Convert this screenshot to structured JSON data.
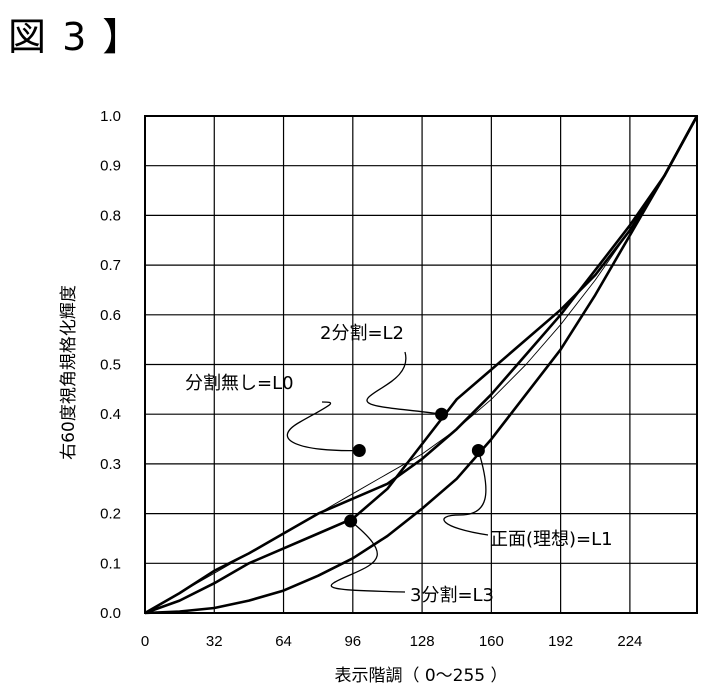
{
  "figure": {
    "title": "図 3 】"
  },
  "chart_data": {
    "type": "line",
    "xlabel": "表示階調（ 0～255 ）",
    "ylabel": "右60度視角規格化輝度",
    "xlim": [
      0,
      255
    ],
    "ylim": [
      0,
      1.0
    ],
    "x_ticks": [
      "0",
      "32",
      "64",
      "96",
      "128",
      "160",
      "192",
      "224"
    ],
    "y_ticks": [
      "0.0",
      "0.1",
      "0.2",
      "0.3",
      "0.4",
      "0.5",
      "0.6",
      "0.7",
      "0.8",
      "0.9",
      "1.0"
    ],
    "grid": true,
    "series": [
      {
        "name": "分割無し=L0",
        "x": [
          0,
          16,
          32,
          48,
          64,
          80,
          96,
          112,
          128,
          144,
          160,
          176,
          192,
          208,
          224,
          240,
          255
        ],
        "y": [
          0,
          0.04,
          0.08,
          0.12,
          0.16,
          0.2,
          0.24,
          0.28,
          0.32,
          0.37,
          0.43,
          0.5,
          0.58,
          0.67,
          0.77,
          0.88,
          1.0
        ]
      },
      {
        "name": "正面(理想)=L1",
        "x": [
          0,
          16,
          32,
          48,
          64,
          80,
          96,
          112,
          128,
          144,
          160,
          176,
          192,
          208,
          224,
          240,
          255
        ],
        "y": [
          0,
          0.003,
          0.01,
          0.025,
          0.045,
          0.075,
          0.11,
          0.155,
          0.21,
          0.27,
          0.35,
          0.44,
          0.53,
          0.64,
          0.76,
          0.88,
          1.0
        ]
      },
      {
        "name": "2分割=L2",
        "x": [
          0,
          16,
          32,
          48,
          64,
          80,
          96,
          112,
          128,
          144,
          160,
          176,
          192,
          208,
          224,
          240,
          255
        ],
        "y": [
          0,
          0.025,
          0.06,
          0.1,
          0.13,
          0.16,
          0.19,
          0.25,
          0.34,
          0.43,
          0.49,
          0.55,
          0.61,
          0.68,
          0.77,
          0.88,
          1.0
        ]
      },
      {
        "name": "3分割=L3",
        "x": [
          0,
          16,
          32,
          48,
          64,
          80,
          96,
          112,
          128,
          144,
          160,
          176,
          192,
          208,
          224,
          240,
          255
        ],
        "y": [
          0,
          0.04,
          0.085,
          0.12,
          0.16,
          0.2,
          0.23,
          0.26,
          0.31,
          0.37,
          0.44,
          0.52,
          0.6,
          0.69,
          0.78,
          0.88,
          1.0
        ]
      }
    ],
    "annotations": [
      {
        "text": "分割無し=L0",
        "x": 99,
        "y": 0.327
      },
      {
        "text": "2分割=L2",
        "x": 137,
        "y": 0.4
      },
      {
        "text": "正面(理想)=L1",
        "x": 154,
        "y": 0.327
      },
      {
        "text": "3分割=L3",
        "x": 95,
        "y": 0.185
      }
    ]
  }
}
